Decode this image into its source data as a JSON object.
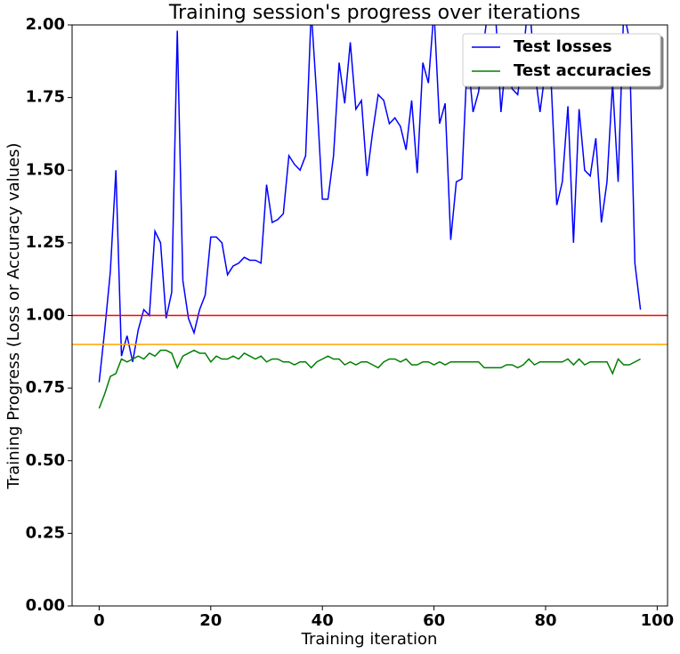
{
  "chart_data": {
    "type": "line",
    "title": "Training session's progress over iterations",
    "x_label": "Training iteration",
    "y_label": "Training Progress (Loss or Accuracy values)",
    "x": [
      0,
      1,
      2,
      3,
      4,
      5,
      6,
      7,
      8,
      9,
      10,
      11,
      12,
      13,
      14,
      15,
      16,
      17,
      18,
      19,
      20,
      21,
      22,
      23,
      24,
      25,
      26,
      27,
      28,
      29,
      30,
      31,
      32,
      33,
      34,
      35,
      36,
      37,
      38,
      39,
      40,
      41,
      42,
      43,
      44,
      45,
      46,
      47,
      48,
      49,
      50,
      51,
      52,
      53,
      54,
      55,
      56,
      57,
      58,
      59,
      60,
      61,
      62,
      63,
      64,
      65,
      66,
      67,
      68,
      69,
      70,
      71,
      72,
      73,
      74,
      75,
      76,
      77,
      78,
      79,
      80,
      81,
      82,
      83,
      84,
      85,
      86,
      87,
      88,
      89,
      90,
      91,
      92,
      93,
      94,
      95,
      96,
      97
    ],
    "series": [
      {
        "name": "Test losses",
        "color": "#0000ff",
        "values": [
          0.77,
          0.95,
          1.15,
          1.5,
          0.86,
          0.93,
          0.84,
          0.95,
          1.02,
          1.0,
          1.29,
          1.25,
          0.99,
          1.08,
          1.98,
          1.12,
          0.99,
          0.94,
          1.02,
          1.07,
          1.27,
          1.27,
          1.25,
          1.14,
          1.17,
          1.18,
          1.2,
          1.19,
          1.19,
          1.18,
          1.45,
          1.32,
          1.33,
          1.35,
          1.55,
          1.52,
          1.5,
          1.55,
          2.05,
          1.75,
          1.4,
          1.4,
          1.55,
          1.87,
          1.73,
          1.94,
          1.71,
          1.74,
          1.48,
          1.63,
          1.76,
          1.74,
          1.66,
          1.68,
          1.65,
          1.57,
          1.74,
          1.49,
          1.87,
          1.8,
          2.05,
          1.66,
          1.73,
          1.26,
          1.46,
          1.47,
          1.9,
          1.7,
          1.77,
          1.95,
          2.1,
          2.05,
          1.7,
          1.9,
          1.78,
          1.76,
          1.9,
          2.1,
          1.85,
          1.7,
          1.85,
          1.8,
          1.38,
          1.46,
          1.72,
          1.25,
          1.71,
          1.5,
          1.48,
          1.61,
          1.32,
          1.46,
          1.8,
          1.46,
          2.05,
          1.95,
          1.18,
          1.02
        ]
      },
      {
        "name": "Test accuracies",
        "color": "#008000",
        "values": [
          0.68,
          0.73,
          0.79,
          0.8,
          0.85,
          0.84,
          0.85,
          0.86,
          0.85,
          0.87,
          0.86,
          0.88,
          0.88,
          0.87,
          0.82,
          0.86,
          0.87,
          0.88,
          0.87,
          0.87,
          0.84,
          0.86,
          0.85,
          0.85,
          0.86,
          0.85,
          0.87,
          0.86,
          0.85,
          0.86,
          0.84,
          0.85,
          0.85,
          0.84,
          0.84,
          0.83,
          0.84,
          0.84,
          0.82,
          0.84,
          0.85,
          0.86,
          0.85,
          0.85,
          0.83,
          0.84,
          0.83,
          0.84,
          0.84,
          0.83,
          0.82,
          0.84,
          0.85,
          0.85,
          0.84,
          0.85,
          0.83,
          0.83,
          0.84,
          0.84,
          0.83,
          0.84,
          0.83,
          0.84,
          0.84,
          0.84,
          0.84,
          0.84,
          0.84,
          0.82,
          0.82,
          0.82,
          0.82,
          0.83,
          0.83,
          0.82,
          0.83,
          0.85,
          0.83,
          0.84,
          0.84,
          0.84,
          0.84,
          0.84,
          0.85,
          0.83,
          0.85,
          0.83,
          0.84,
          0.84,
          0.84,
          0.84,
          0.8,
          0.85,
          0.83,
          0.83,
          0.84,
          0.85
        ]
      }
    ],
    "hlines": [
      {
        "y": 1.0,
        "color": "#ff0000"
      },
      {
        "y": 0.9,
        "color": "#ffa500"
      }
    ],
    "xlim": [
      -4.85,
      101.85
    ],
    "ylim": [
      0,
      2
    ],
    "xticks": [
      0,
      20,
      40,
      60,
      80,
      100
    ],
    "yticks": [
      {
        "value": 0,
        "label": "0.00"
      },
      {
        "value": 0.25,
        "label": "0.25"
      },
      {
        "value": 0.5,
        "label": "0.50"
      },
      {
        "value": 0.75,
        "label": "0.75"
      },
      {
        "value": 1,
        "label": "1.00"
      },
      {
        "value": 1.25,
        "label": "1.25"
      },
      {
        "value": 1.5,
        "label": "1.50"
      },
      {
        "value": 1.75,
        "label": "1.75"
      },
      {
        "value": 2,
        "label": "2.00"
      }
    ],
    "legend": "upper right"
  }
}
